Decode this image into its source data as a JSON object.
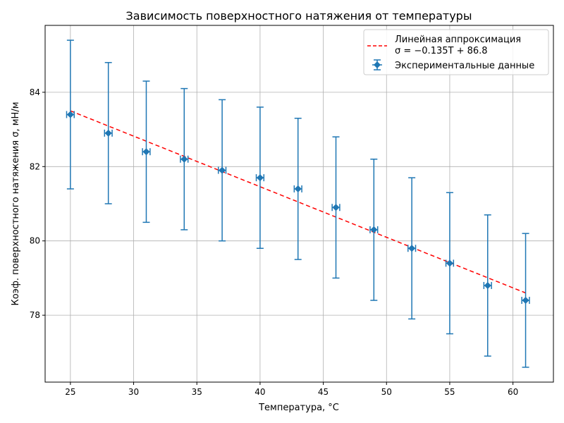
{
  "chart_data": {
    "type": "scatter",
    "title": "Зависимость поверхностного натяжения от температуры",
    "xlabel": "Температура, °C",
    "ylabel": "Коэф. поверхностного натяжения σ, мН/м",
    "xlim": [
      23,
      63.2
    ],
    "ylim": [
      76.2,
      85.8
    ],
    "x_ticks": [
      25,
      30,
      35,
      40,
      45,
      50,
      55,
      60
    ],
    "y_ticks": [
      78,
      80,
      82,
      84
    ],
    "grid": true,
    "legend_position": "top-right",
    "series": [
      {
        "name": "Экспериментальные данные",
        "kind": "errorbar",
        "color": "#1f77b4",
        "x": [
          25,
          28,
          31,
          34,
          37,
          40,
          43,
          46,
          49,
          52,
          55,
          58,
          61
        ],
        "y": [
          83.4,
          82.9,
          82.4,
          82.2,
          81.9,
          81.7,
          81.4,
          80.9,
          80.3,
          79.8,
          79.4,
          78.8,
          78.4
        ],
        "y_err": [
          2.0,
          1.9,
          1.9,
          1.9,
          1.9,
          1.9,
          1.9,
          1.9,
          1.9,
          1.9,
          1.9,
          1.9,
          1.8
        ],
        "x_err": 0.3
      },
      {
        "name": "Линейная аппроксимация",
        "name_formula": "σ = −0.135T + 86.8",
        "kind": "line",
        "color": "#ff0000",
        "style": "dashed",
        "x": [
          25,
          61
        ],
        "y": [
          83.5,
          78.6
        ]
      }
    ]
  }
}
